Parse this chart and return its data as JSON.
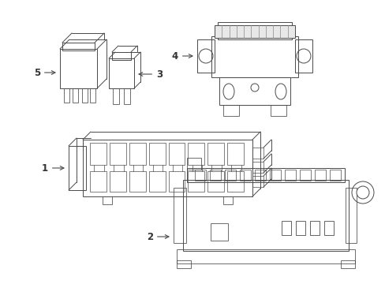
{
  "bg_color": "#ffffff",
  "line_color": "#4a4a4a",
  "lw": 0.7,
  "figsize": [
    4.89,
    3.6
  ],
  "dpi": 100
}
